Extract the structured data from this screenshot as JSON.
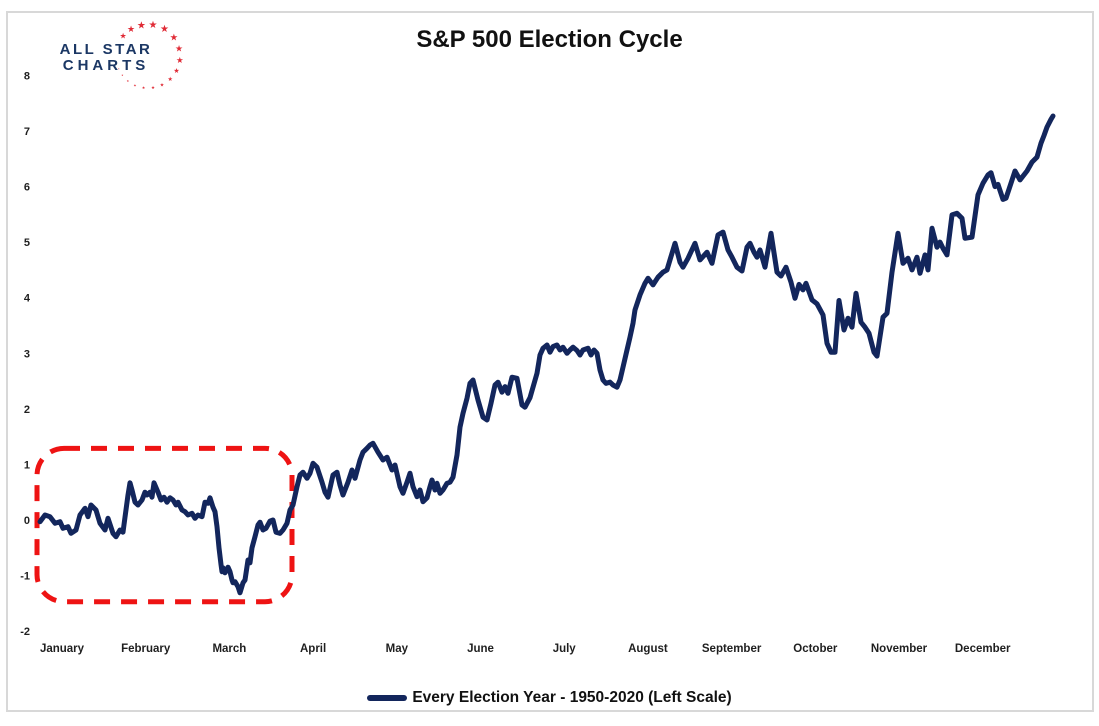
{
  "logo": {
    "line1": "ALL STAR",
    "line2": "CHARTS",
    "text_color": "#1b3764",
    "star_color": "#e02b36"
  },
  "header": {
    "title": "S&P 500 Election Cycle"
  },
  "legend": {
    "label": "Every Election Year - 1950-2020 (Left Scale)",
    "swatch_color": "#13265c"
  },
  "chart_data": {
    "type": "line",
    "title": "S&P 500 Election Cycle",
    "grid": false,
    "legend_position": "bottom",
    "y_axis": {
      "min": -2,
      "max": 8,
      "ticks": [
        8,
        7,
        6,
        5,
        4,
        3,
        2,
        1,
        0,
        -1,
        -2
      ]
    },
    "x_axis": {
      "labels": [
        "January",
        "February",
        "March",
        "April",
        "May",
        "June",
        "July",
        "August",
        "September",
        "October",
        "November",
        "December"
      ],
      "pos_range": [
        0,
        1013
      ]
    },
    "annotation": {
      "type": "dashed_rounded_rect",
      "color": "#ee1313",
      "x0_pos": -3,
      "x1_pos": 252,
      "y0_val": -1.47,
      "y1_val": 1.29
    },
    "series": [
      {
        "name": "Every Election Year - 1950-2020 (Left Scale)",
        "color": "#13265c",
        "points": [
          [
            0,
            -0.03
          ],
          [
            5,
            0.09
          ],
          [
            10,
            0.06
          ],
          [
            15,
            -0.06
          ],
          [
            20,
            -0.03
          ],
          [
            23,
            -0.15
          ],
          [
            28,
            -0.12
          ],
          [
            31,
            -0.24
          ],
          [
            36,
            -0.18
          ],
          [
            40,
            0.09
          ],
          [
            45,
            0.21
          ],
          [
            48,
            0.06
          ],
          [
            51,
            0.27
          ],
          [
            56,
            0.18
          ],
          [
            60,
            -0.06
          ],
          [
            65,
            -0.18
          ],
          [
            68,
            0.03
          ],
          [
            73,
            -0.24
          ],
          [
            76,
            -0.3
          ],
          [
            80,
            -0.18
          ],
          [
            83,
            -0.22
          ],
          [
            85,
            0.05
          ],
          [
            88,
            0.45
          ],
          [
            90,
            0.67
          ],
          [
            92,
            0.54
          ],
          [
            95,
            0.32
          ],
          [
            98,
            0.27
          ],
          [
            102,
            0.36
          ],
          [
            105,
            0.5
          ],
          [
            107,
            0.45
          ],
          [
            110,
            0.5
          ],
          [
            112,
            0.41
          ],
          [
            114,
            0.67
          ],
          [
            118,
            0.5
          ],
          [
            121,
            0.36
          ],
          [
            124,
            0.41
          ],
          [
            127,
            0.32
          ],
          [
            130,
            0.4
          ],
          [
            133,
            0.36
          ],
          [
            136,
            0.27
          ],
          [
            138,
            0.32
          ],
          [
            142,
            0.18
          ],
          [
            145,
            0.15
          ],
          [
            148,
            0.09
          ],
          [
            152,
            0.12
          ],
          [
            155,
            0.03
          ],
          [
            158,
            0.09
          ],
          [
            162,
            0.06
          ],
          [
            165,
            0.32
          ],
          [
            168,
            0.3
          ],
          [
            170,
            0.4
          ],
          [
            173,
            0.23
          ],
          [
            175,
            0.15
          ],
          [
            177,
            -0.12
          ],
          [
            179,
            -0.5
          ],
          [
            181,
            -0.8
          ],
          [
            182,
            -0.93
          ],
          [
            183,
            -0.86
          ],
          [
            185,
            -0.95
          ],
          [
            188,
            -0.85
          ],
          [
            190,
            -0.93
          ],
          [
            192,
            -1.08
          ],
          [
            193,
            -1.13
          ],
          [
            195,
            -1.11
          ],
          [
            198,
            -1.2
          ],
          [
            200,
            -1.31
          ],
          [
            203,
            -1.13
          ],
          [
            205,
            -1.08
          ],
          [
            208,
            -0.72
          ],
          [
            210,
            -0.77
          ],
          [
            212,
            -0.5
          ],
          [
            215,
            -0.3
          ],
          [
            218,
            -0.09
          ],
          [
            220,
            -0.04
          ],
          [
            223,
            -0.18
          ],
          [
            226,
            -0.15
          ],
          [
            230,
            -0.02
          ],
          [
            233,
            0.0
          ],
          [
            236,
            -0.22
          ],
          [
            240,
            -0.24
          ],
          [
            243,
            -0.18
          ],
          [
            247,
            -0.06
          ],
          [
            250,
            0.18
          ],
          [
            253,
            0.27
          ],
          [
            257,
            0.6
          ],
          [
            260,
            0.81
          ],
          [
            263,
            0.86
          ],
          [
            267,
            0.75
          ],
          [
            270,
            0.84
          ],
          [
            273,
            1.02
          ],
          [
            277,
            0.95
          ],
          [
            282,
            0.68
          ],
          [
            285,
            0.5
          ],
          [
            288,
            0.41
          ],
          [
            293,
            0.81
          ],
          [
            297,
            0.86
          ],
          [
            300,
            0.63
          ],
          [
            303,
            0.45
          ],
          [
            308,
            0.68
          ],
          [
            312,
            0.9
          ],
          [
            315,
            0.75
          ],
          [
            320,
            1.08
          ],
          [
            323,
            1.22
          ],
          [
            327,
            1.29
          ],
          [
            330,
            1.35
          ],
          [
            333,
            1.38
          ],
          [
            338,
            1.22
          ],
          [
            343,
            1.08
          ],
          [
            347,
            1.13
          ],
          [
            352,
            0.9
          ],
          [
            355,
            0.99
          ],
          [
            360,
            0.6
          ],
          [
            363,
            0.48
          ],
          [
            367,
            0.68
          ],
          [
            370,
            0.84
          ],
          [
            373,
            0.6
          ],
          [
            377,
            0.42
          ],
          [
            380,
            0.54
          ],
          [
            383,
            0.33
          ],
          [
            387,
            0.4
          ],
          [
            390,
            0.6
          ],
          [
            392,
            0.72
          ],
          [
            395,
            0.54
          ],
          [
            397,
            0.66
          ],
          [
            400,
            0.48
          ],
          [
            403,
            0.54
          ],
          [
            407,
            0.66
          ],
          [
            410,
            0.68
          ],
          [
            413,
            0.77
          ],
          [
            417,
            1.17
          ],
          [
            420,
            1.67
          ],
          [
            423,
            1.92
          ],
          [
            427,
            2.19
          ],
          [
            430,
            2.46
          ],
          [
            433,
            2.52
          ],
          [
            438,
            2.16
          ],
          [
            443,
            1.85
          ],
          [
            447,
            1.8
          ],
          [
            451,
            2.1
          ],
          [
            455,
            2.43
          ],
          [
            458,
            2.48
          ],
          [
            462,
            2.3
          ],
          [
            465,
            2.4
          ],
          [
            468,
            2.28
          ],
          [
            472,
            2.57
          ],
          [
            477,
            2.55
          ],
          [
            482,
            2.07
          ],
          [
            485,
            2.03
          ],
          [
            490,
            2.2
          ],
          [
            497,
            2.64
          ],
          [
            500,
            2.97
          ],
          [
            503,
            3.09
          ],
          [
            507,
            3.15
          ],
          [
            510,
            3.02
          ],
          [
            513,
            3.12
          ],
          [
            517,
            3.15
          ],
          [
            520,
            3.06
          ],
          [
            523,
            3.11
          ],
          [
            527,
            3.0
          ],
          [
            530,
            3.06
          ],
          [
            533,
            3.11
          ],
          [
            537,
            3.05
          ],
          [
            540,
            2.97
          ],
          [
            543,
            3.06
          ],
          [
            548,
            3.09
          ],
          [
            551,
            2.97
          ],
          [
            554,
            3.06
          ],
          [
            557,
            3.0
          ],
          [
            560,
            2.7
          ],
          [
            563,
            2.52
          ],
          [
            566,
            2.46
          ],
          [
            570,
            2.48
          ],
          [
            573,
            2.43
          ],
          [
            577,
            2.39
          ],
          [
            580,
            2.52
          ],
          [
            583,
            2.75
          ],
          [
            587,
            3.06
          ],
          [
            590,
            3.29
          ],
          [
            593,
            3.54
          ],
          [
            595,
            3.78
          ],
          [
            600,
            4.05
          ],
          [
            605,
            4.26
          ],
          [
            608,
            4.35
          ],
          [
            613,
            4.23
          ],
          [
            618,
            4.37
          ],
          [
            623,
            4.46
          ],
          [
            627,
            4.5
          ],
          [
            630,
            4.68
          ],
          [
            635,
            4.98
          ],
          [
            640,
            4.64
          ],
          [
            643,
            4.55
          ],
          [
            648,
            4.71
          ],
          [
            655,
            4.98
          ],
          [
            660,
            4.68
          ],
          [
            667,
            4.82
          ],
          [
            672,
            4.62
          ],
          [
            678,
            5.13
          ],
          [
            683,
            5.18
          ],
          [
            688,
            4.86
          ],
          [
            692,
            4.73
          ],
          [
            697,
            4.55
          ],
          [
            702,
            4.48
          ],
          [
            707,
            4.91
          ],
          [
            710,
            4.98
          ],
          [
            714,
            4.82
          ],
          [
            717,
            4.73
          ],
          [
            720,
            4.86
          ],
          [
            725,
            4.55
          ],
          [
            731,
            5.16
          ],
          [
            737,
            4.46
          ],
          [
            741,
            4.39
          ],
          [
            746,
            4.55
          ],
          [
            751,
            4.28
          ],
          [
            755,
            3.99
          ],
          [
            759,
            4.24
          ],
          [
            763,
            4.14
          ],
          [
            766,
            4.26
          ],
          [
            772,
            3.96
          ],
          [
            777,
            3.89
          ],
          [
            783,
            3.69
          ],
          [
            787,
            3.18
          ],
          [
            791,
            3.02
          ],
          [
            795,
            3.02
          ],
          [
            799,
            3.95
          ],
          [
            804,
            3.42
          ],
          [
            808,
            3.63
          ],
          [
            812,
            3.47
          ],
          [
            816,
            4.08
          ],
          [
            821,
            3.56
          ],
          [
            825,
            3.47
          ],
          [
            829,
            3.36
          ],
          [
            834,
            3.02
          ],
          [
            837,
            2.95
          ],
          [
            843,
            3.65
          ],
          [
            847,
            3.72
          ],
          [
            852,
            4.46
          ],
          [
            858,
            5.16
          ],
          [
            863,
            4.62
          ],
          [
            868,
            4.71
          ],
          [
            872,
            4.5
          ],
          [
            877,
            4.73
          ],
          [
            880,
            4.44
          ],
          [
            885,
            4.77
          ],
          [
            888,
            4.5
          ],
          [
            892,
            5.25
          ],
          [
            897,
            4.91
          ],
          [
            900,
            5.0
          ],
          [
            903,
            4.89
          ],
          [
            907,
            4.77
          ],
          [
            912,
            5.49
          ],
          [
            917,
            5.52
          ],
          [
            922,
            5.43
          ],
          [
            925,
            5.07
          ],
          [
            932,
            5.09
          ],
          [
            938,
            5.85
          ],
          [
            943,
            6.06
          ],
          [
            948,
            6.21
          ],
          [
            951,
            6.25
          ],
          [
            955,
            6.0
          ],
          [
            958,
            6.04
          ],
          [
            963,
            5.77
          ],
          [
            966,
            5.79
          ],
          [
            971,
            6.06
          ],
          [
            975,
            6.28
          ],
          [
            980,
            6.12
          ],
          [
            987,
            6.28
          ],
          [
            992,
            6.44
          ],
          [
            997,
            6.53
          ],
          [
            1001,
            6.78
          ],
          [
            1004,
            6.92
          ],
          [
            1007,
            7.07
          ],
          [
            1011,
            7.21
          ],
          [
            1013,
            7.27
          ]
        ]
      }
    ]
  }
}
